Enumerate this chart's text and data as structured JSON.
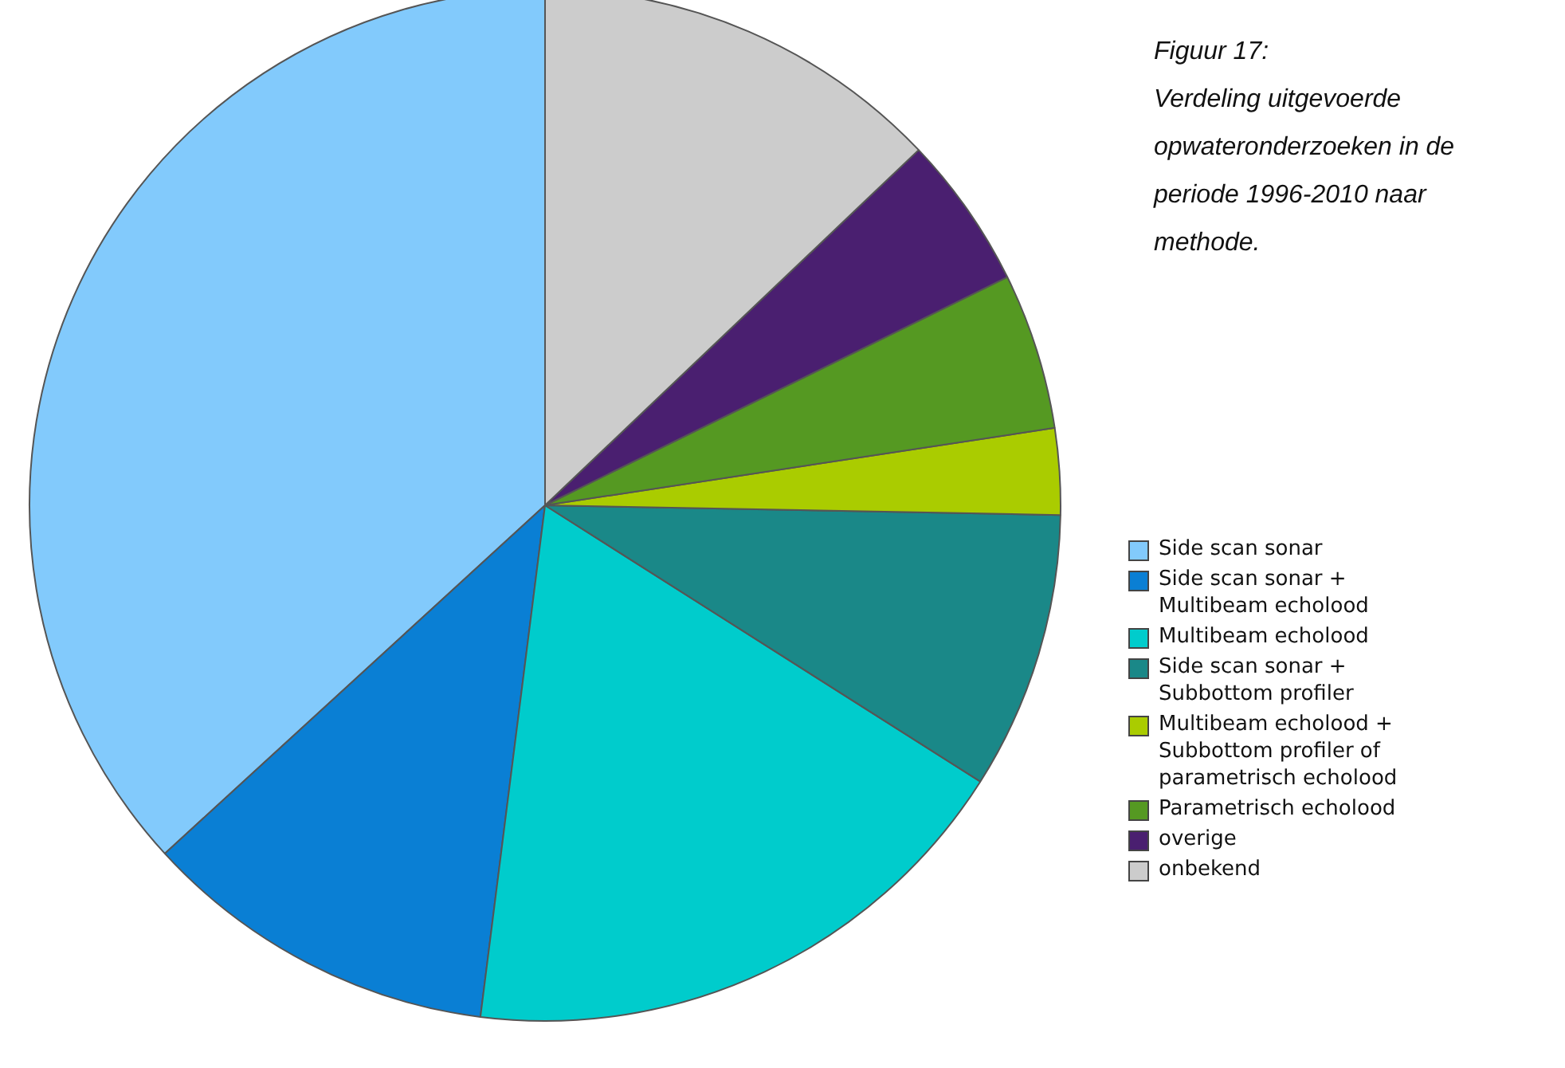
{
  "chart_data": {
    "type": "pie",
    "title": "Figuur 17:",
    "subtitle": "Verdeling uitgevoerde opwateronderzoeken in de periode 1996-2010 naar methode.",
    "categories": [
      "Side scan sonar",
      "Side scan sonar + Multibeam echolood",
      "Multibeam echolood",
      "Side scan sonar + Subbottom profiler",
      "Multibeam echolood + Subbottom profiler of parametrisch echolood",
      "Parametrisch echolood",
      "overige",
      "onbekend"
    ],
    "values": [
      36.8,
      11.2,
      18.0,
      8.7,
      2.7,
      4.9,
      4.8,
      12.9
    ],
    "colors": [
      "#82cafc",
      "#0a7fd4",
      "#00cccc",
      "#1a8888",
      "#aacc00",
      "#559922",
      "#4a1f70",
      "#cccccc"
    ],
    "legend": "right"
  }
}
